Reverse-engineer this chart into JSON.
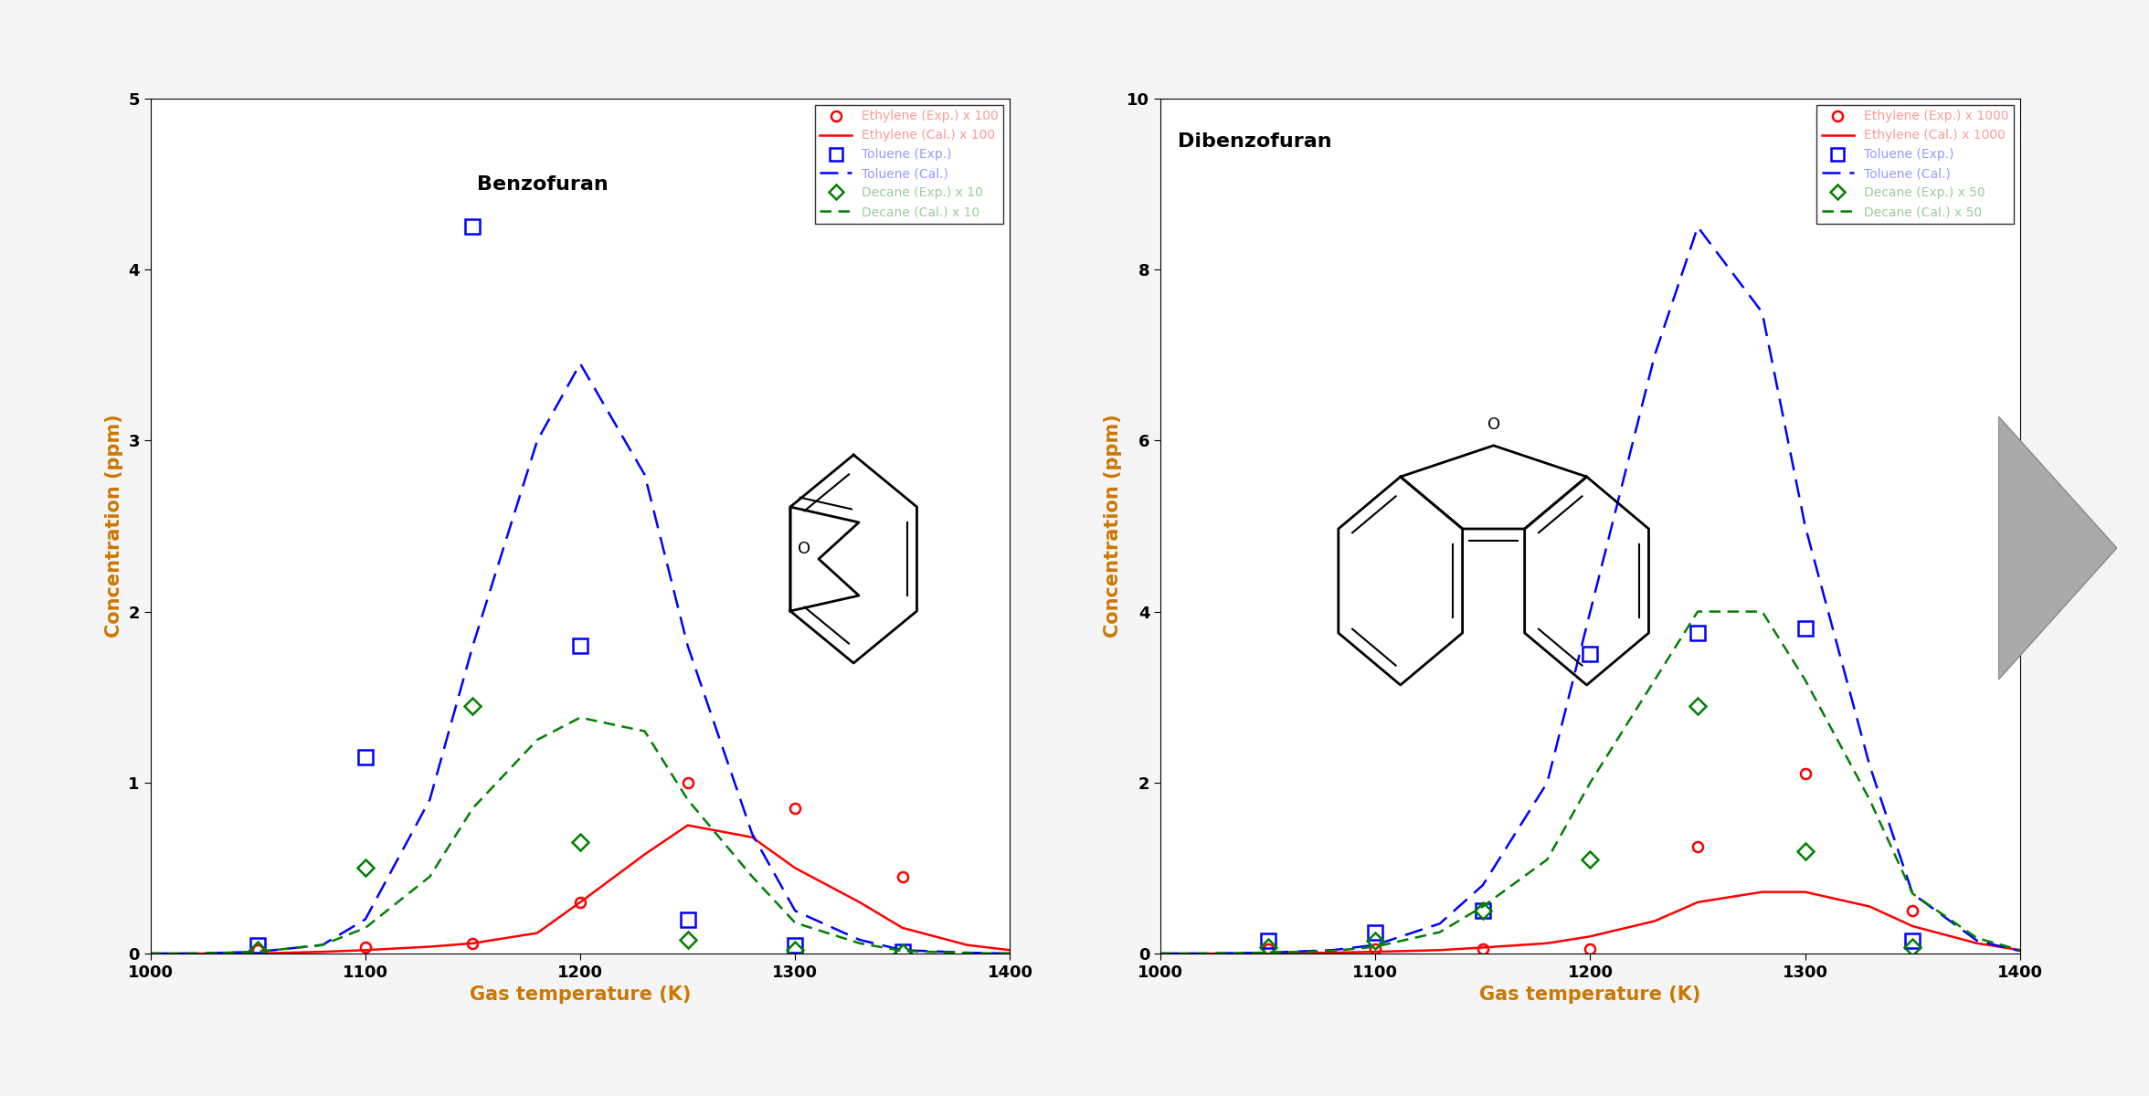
{
  "plot1": {
    "title": "Benzofuran",
    "ylim": [
      0,
      5
    ],
    "yticks": [
      0,
      1,
      2,
      3,
      4,
      5
    ],
    "xlim": [
      1000,
      1400
    ],
    "xticks": [
      1000,
      1100,
      1200,
      1300,
      1400
    ],
    "ylabel": "Concentration (ppm)",
    "xlabel": "Gas temperature (K)",
    "ethylene_exp_x": [
      1050,
      1100,
      1150,
      1200,
      1250,
      1300,
      1350
    ],
    "ethylene_exp_y": [
      0.02,
      0.04,
      0.06,
      0.3,
      1.0,
      0.85,
      0.45
    ],
    "ethylene_cal_x": [
      1000,
      1020,
      1050,
      1080,
      1100,
      1130,
      1150,
      1180,
      1200,
      1230,
      1250,
      1280,
      1300,
      1330,
      1350,
      1380,
      1400
    ],
    "ethylene_cal_y": [
      0.0,
      0.0,
      0.0,
      0.01,
      0.02,
      0.04,
      0.06,
      0.12,
      0.3,
      0.58,
      0.75,
      0.68,
      0.5,
      0.3,
      0.15,
      0.05,
      0.02
    ],
    "toluene_exp_x": [
      1050,
      1100,
      1150,
      1200,
      1250,
      1300,
      1350
    ],
    "toluene_exp_y": [
      0.05,
      1.15,
      4.25,
      1.8,
      0.2,
      0.05,
      0.01
    ],
    "toluene_cal_x": [
      1000,
      1020,
      1050,
      1080,
      1100,
      1130,
      1150,
      1180,
      1200,
      1230,
      1250,
      1280,
      1300,
      1330,
      1350,
      1380,
      1400
    ],
    "toluene_cal_y": [
      0.0,
      0.0,
      0.01,
      0.05,
      0.2,
      0.9,
      1.8,
      3.0,
      3.45,
      2.8,
      1.8,
      0.7,
      0.25,
      0.08,
      0.02,
      0.005,
      0.0
    ],
    "decane_exp_x": [
      1050,
      1100,
      1150,
      1200,
      1250,
      1300,
      1350
    ],
    "decane_exp_y": [
      0.02,
      0.5,
      1.45,
      0.65,
      0.08,
      0.02,
      0.005
    ],
    "decane_cal_x": [
      1000,
      1020,
      1050,
      1080,
      1100,
      1130,
      1150,
      1180,
      1200,
      1230,
      1250,
      1280,
      1300,
      1330,
      1350,
      1380,
      1400
    ],
    "decane_cal_y": [
      0.0,
      0.0,
      0.01,
      0.05,
      0.15,
      0.45,
      0.85,
      1.25,
      1.38,
      1.3,
      0.9,
      0.45,
      0.18,
      0.06,
      0.015,
      0.003,
      0.0
    ],
    "legend_entries": [
      "Ethylene (Exp.) x 100",
      "Ethylene (Cal.) x 100",
      "Toluene (Exp.)",
      "Toluene (Cal.)",
      "Decane (Exp.) x 10",
      "Decane (Cal.) x 10"
    ]
  },
  "plot2": {
    "title": "Dibenzofuran",
    "ylim": [
      0,
      10
    ],
    "yticks": [
      0,
      2,
      4,
      6,
      8,
      10
    ],
    "xlim": [
      1000,
      1400
    ],
    "xticks": [
      1000,
      1100,
      1200,
      1300,
      1400
    ],
    "ylabel": "Concentration (ppm)",
    "xlabel": "Gas temperature (K)",
    "ethylene_exp_x": [
      1050,
      1100,
      1150,
      1200,
      1250,
      1300,
      1350
    ],
    "ethylene_exp_y": [
      0.05,
      0.05,
      0.05,
      0.05,
      1.25,
      2.1,
      0.5
    ],
    "ethylene_cal_x": [
      1000,
      1020,
      1050,
      1080,
      1100,
      1130,
      1150,
      1180,
      1200,
      1230,
      1250,
      1280,
      1300,
      1330,
      1350,
      1380,
      1400
    ],
    "ethylene_cal_y": [
      0.0,
      0.0,
      0.0,
      0.01,
      0.02,
      0.04,
      0.07,
      0.12,
      0.2,
      0.38,
      0.6,
      0.72,
      0.72,
      0.55,
      0.32,
      0.12,
      0.04
    ],
    "toluene_exp_x": [
      1050,
      1100,
      1150,
      1200,
      1250,
      1300,
      1350
    ],
    "toluene_exp_y": [
      0.15,
      0.25,
      0.5,
      3.5,
      3.75,
      3.8,
      0.15
    ],
    "toluene_cal_x": [
      1000,
      1020,
      1050,
      1080,
      1100,
      1130,
      1150,
      1180,
      1200,
      1230,
      1250,
      1280,
      1300,
      1330,
      1350,
      1380,
      1400
    ],
    "toluene_cal_y": [
      0.0,
      0.0,
      0.01,
      0.04,
      0.1,
      0.35,
      0.8,
      2.0,
      4.0,
      7.0,
      8.5,
      7.5,
      5.0,
      2.2,
      0.7,
      0.15,
      0.03
    ],
    "decane_exp_x": [
      1050,
      1100,
      1150,
      1200,
      1250,
      1300,
      1350
    ],
    "decane_exp_y": [
      0.08,
      0.15,
      0.5,
      1.1,
      2.9,
      1.2,
      0.08
    ],
    "decane_cal_x": [
      1000,
      1020,
      1050,
      1080,
      1100,
      1130,
      1150,
      1180,
      1200,
      1230,
      1250,
      1280,
      1300,
      1330,
      1350,
      1380,
      1400
    ],
    "decane_cal_y": [
      0.0,
      0.0,
      0.01,
      0.03,
      0.08,
      0.25,
      0.55,
      1.1,
      2.0,
      3.2,
      4.0,
      4.0,
      3.2,
      1.8,
      0.7,
      0.18,
      0.04
    ],
    "legend_entries": [
      "Ethylene (Exp.) x 1000",
      "Ethylene (Cal.) x 1000",
      "Toluene (Exp.)",
      "Toluene (Cal.)",
      "Decane (Exp.) x 50",
      "Decane (Cal.) x 50"
    ]
  },
  "colors": {
    "ethylene_exp": "#FF0000",
    "ethylene_cal": "#FF0000",
    "toluene_exp": "#0000FF",
    "toluene_cal": "#0000FF",
    "decane_exp": "#008000",
    "decane_cal": "#008000"
  },
  "legend_text_colors": [
    "#FF8080",
    "#FF8080",
    "#8080FF",
    "#8080FF",
    "#80C080",
    "#80C080"
  ],
  "tick_color": "#CC7700",
  "axis_label_color": "#CC7700",
  "fig_bg": "#F5F5F5",
  "plot_bg": "#FFFFFF"
}
